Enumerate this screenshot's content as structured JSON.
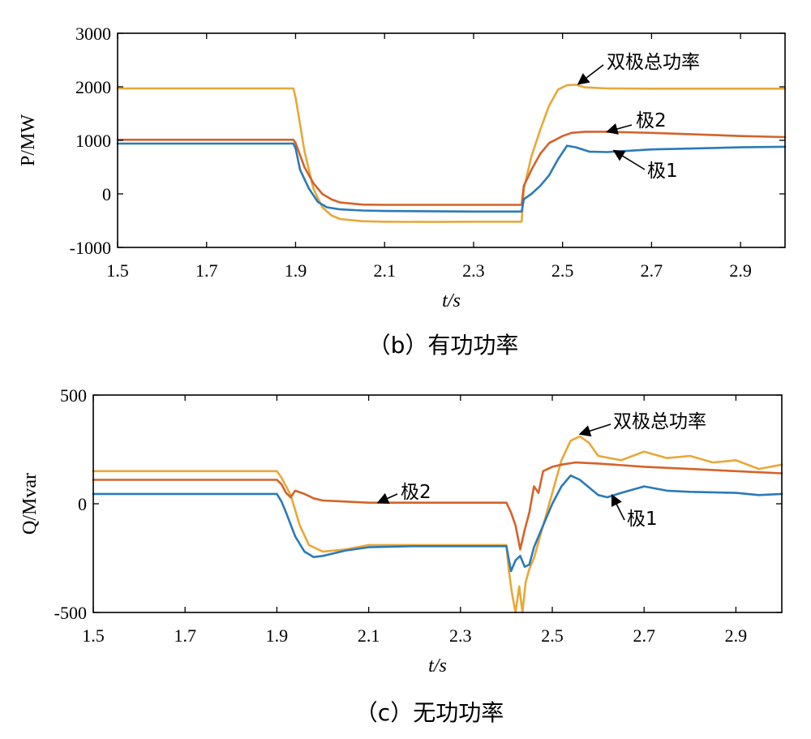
{
  "chart_data": [
    {
      "type": "line",
      "caption": "（b）有功功率",
      "xlabel": "t/s",
      "ylabel": "P/MW",
      "xlim": [
        1.5,
        3.0
      ],
      "ylim": [
        -1000,
        3000
      ],
      "xticks": [
        1.5,
        1.7,
        1.9,
        2.1,
        2.3,
        2.5,
        2.7,
        2.9
      ],
      "xtick_labels": [
        "1.5",
        "1.7",
        "1.9",
        "2.1",
        "2.3",
        "2.5",
        "2.7",
        "2.9"
      ],
      "yticks": [
        -1000,
        0,
        1000,
        2000,
        3000
      ],
      "ytick_labels": [
        "-1000",
        "0",
        "1000",
        "2000",
        "3000"
      ],
      "grid": false,
      "series": [
        {
          "name": "双极总功率",
          "color": "#E8A838",
          "x": [
            1.5,
            1.895,
            1.9,
            1.92,
            1.94,
            1.96,
            1.98,
            2.0,
            2.05,
            2.1,
            2.2,
            2.3,
            2.408,
            2.413,
            2.43,
            2.45,
            2.47,
            2.49,
            2.51,
            2.53,
            2.55,
            2.6,
            2.7,
            2.8,
            2.9,
            3.0
          ],
          "y": [
            1970,
            1970,
            1800,
            800,
            100,
            -250,
            -400,
            -470,
            -510,
            -520,
            -525,
            -520,
            -520,
            100,
            700,
            1200,
            1650,
            1950,
            2030,
            2040,
            1990,
            1970,
            1965,
            1965,
            1965,
            1965
          ]
        },
        {
          "name": "极2",
          "color": "#D4632A",
          "x": [
            1.5,
            1.895,
            1.9,
            1.92,
            1.94,
            1.96,
            1.98,
            2.0,
            2.05,
            2.1,
            2.2,
            2.3,
            2.408,
            2.413,
            2.43,
            2.45,
            2.47,
            2.5,
            2.52,
            2.55,
            2.6,
            2.7,
            2.8,
            2.9,
            3.0
          ],
          "y": [
            1010,
            1010,
            950,
            500,
            200,
            0,
            -100,
            -160,
            -200,
            -205,
            -205,
            -205,
            -205,
            150,
            450,
            750,
            950,
            1080,
            1140,
            1160,
            1160,
            1140,
            1110,
            1080,
            1060
          ]
        },
        {
          "name": "极1",
          "color": "#2B7AB8",
          "x": [
            1.5,
            1.895,
            1.9,
            1.91,
            1.93,
            1.95,
            1.97,
            2.0,
            2.05,
            2.1,
            2.2,
            2.3,
            2.408,
            2.413,
            2.43,
            2.45,
            2.47,
            2.49,
            2.51,
            2.53,
            2.56,
            2.6,
            2.7,
            2.8,
            2.9,
            3.0
          ],
          "y": [
            940,
            940,
            850,
            450,
            100,
            -150,
            -250,
            -290,
            -310,
            -320,
            -325,
            -330,
            -330,
            -100,
            0,
            150,
            350,
            650,
            900,
            870,
            790,
            780,
            830,
            850,
            870,
            880
          ]
        }
      ],
      "annotations": [
        {
          "text": "双极总功率",
          "series": "双极总功率",
          "x": 2.535,
          "y": 2050
        },
        {
          "text": "极2",
          "series": "极2",
          "x": 2.6,
          "y": 1160
        },
        {
          "text": "极1",
          "series": "极1",
          "x": 2.615,
          "y": 810
        }
      ]
    },
    {
      "type": "line",
      "caption": "（c）无功功率",
      "xlabel": "t/s",
      "ylabel": "Q/Mvar",
      "xlim": [
        1.5,
        3.0
      ],
      "ylim": [
        -500,
        500
      ],
      "xticks": [
        1.5,
        1.7,
        1.9,
        2.1,
        2.3,
        2.5,
        2.7,
        2.9
      ],
      "xtick_labels": [
        "1.5",
        "1.7",
        "1.9",
        "2.1",
        "2.3",
        "2.5",
        "2.7",
        "2.9"
      ],
      "yticks": [
        -500,
        0,
        500
      ],
      "ytick_labels": [
        "-500",
        "0",
        "500"
      ],
      "grid": false,
      "series": [
        {
          "name": "双极总功率",
          "color": "#E8A838",
          "x": [
            1.5,
            1.9,
            1.91,
            1.93,
            1.95,
            1.97,
            2.0,
            2.05,
            2.1,
            2.2,
            2.3,
            2.4,
            2.405,
            2.412,
            2.42,
            2.428,
            2.435,
            2.442,
            2.45,
            2.46,
            2.48,
            2.5,
            2.52,
            2.54,
            2.56,
            2.58,
            2.6,
            2.65,
            2.7,
            2.75,
            2.8,
            2.85,
            2.9,
            2.95,
            3.0
          ],
          "y": [
            150,
            150,
            120,
            40,
            -100,
            -190,
            -220,
            -210,
            -190,
            -190,
            -190,
            -190,
            -300,
            -410,
            -500,
            -380,
            -500,
            -360,
            -300,
            -250,
            -100,
            50,
            200,
            290,
            310,
            280,
            220,
            200,
            240,
            210,
            220,
            190,
            200,
            160,
            180
          ]
        },
        {
          "name": "极2",
          "color": "#D4632A",
          "x": [
            1.5,
            1.9,
            1.91,
            1.92,
            1.93,
            1.94,
            1.96,
            1.98,
            2.0,
            2.05,
            2.1,
            2.2,
            2.3,
            2.4,
            2.41,
            2.42,
            2.43,
            2.44,
            2.45,
            2.46,
            2.47,
            2.48,
            2.5,
            2.52,
            2.55,
            2.6,
            2.7,
            2.8,
            2.9,
            3.0
          ],
          "y": [
            110,
            110,
            90,
            50,
            30,
            60,
            45,
            25,
            15,
            10,
            5,
            5,
            5,
            5,
            -40,
            -100,
            -210,
            -120,
            -40,
            80,
            50,
            150,
            170,
            180,
            190,
            185,
            170,
            160,
            150,
            140
          ]
        },
        {
          "name": "极1",
          "color": "#2B7AB8",
          "x": [
            1.5,
            1.9,
            1.91,
            1.92,
            1.94,
            1.96,
            1.98,
            2.0,
            2.05,
            2.1,
            2.2,
            2.3,
            2.4,
            2.41,
            2.42,
            2.43,
            2.44,
            2.45,
            2.46,
            2.48,
            2.5,
            2.52,
            2.54,
            2.56,
            2.6,
            2.62,
            2.65,
            2.7,
            2.75,
            2.8,
            2.9,
            2.95,
            3.0
          ],
          "y": [
            45,
            45,
            10,
            -40,
            -150,
            -220,
            -245,
            -240,
            -215,
            -200,
            -195,
            -195,
            -195,
            -310,
            -260,
            -240,
            -290,
            -280,
            -200,
            -100,
            0,
            80,
            130,
            110,
            40,
            30,
            50,
            80,
            60,
            55,
            50,
            40,
            45
          ]
        }
      ],
      "annotations": [
        {
          "text": "双极总功率",
          "series": "双极总功率",
          "x": 2.56,
          "y": 320
        },
        {
          "text": "极2",
          "series": "极2",
          "x": 2.12,
          "y": 5
        },
        {
          "text": "极1",
          "series": "极1",
          "x": 2.63,
          "y": 40
        }
      ]
    }
  ]
}
